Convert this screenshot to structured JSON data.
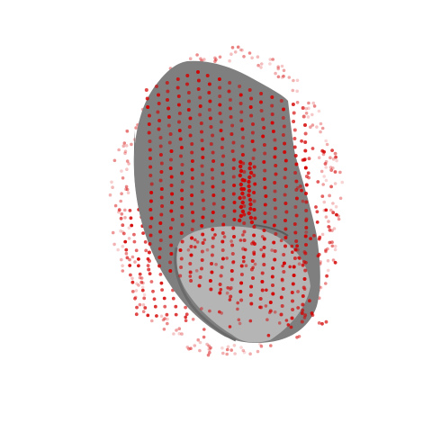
{
  "scene": {
    "background_color": "#ffffff",
    "surface_colors": {
      "outer": "#7f7f7f",
      "outer_shadow": "#5a5a5a",
      "inner_cavity": "#b5b5b5",
      "rim": "#6a6a6a"
    },
    "point_color": "#d40000"
  }
}
